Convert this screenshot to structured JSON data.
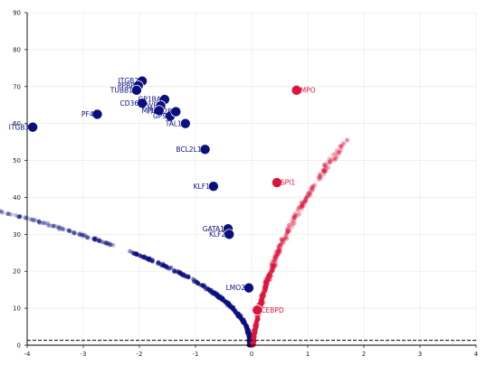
{
  "chart_data": {
    "type": "scatter",
    "title": "",
    "xlabel": "",
    "ylabel": "",
    "xlim": [
      -4,
      4
    ],
    "ylim": [
      0,
      90
    ],
    "xticks": [
      "-4",
      "-3",
      "-2",
      "-1",
      "0",
      "1",
      "2",
      "3",
      "4"
    ],
    "yticks": [
      "0",
      "10",
      "20",
      "30",
      "40",
      "50",
      "60",
      "70",
      "80",
      "90"
    ],
    "grid": true,
    "threshold_line": {
      "y": 1.3,
      "style": "dashed",
      "color": "#000000"
    },
    "colors": {
      "down": "#0b0f7d",
      "up": "#dc143c",
      "text_down": "#0b0f7d",
      "text_up": "#dc143c"
    },
    "highlighted_genes": [
      {
        "label": "ITGB3",
        "x": -3.9,
        "y": 59.0,
        "group": "down"
      },
      {
        "label": "PF4",
        "x": -2.75,
        "y": 62.5,
        "group": "down"
      },
      {
        "label": "ITGB2",
        "x": -1.95,
        "y": 71.5,
        "group": "down"
      },
      {
        "label": "PPBP",
        "x": -2.02,
        "y": 70.2,
        "group": "down"
      },
      {
        "label": "TUBB1",
        "x": -2.05,
        "y": 69.0,
        "group": "down"
      },
      {
        "label": "CD36",
        "x": -1.95,
        "y": 65.5,
        "group": "down"
      },
      {
        "label": "GP1BA",
        "x": -1.55,
        "y": 66.5,
        "group": "down"
      },
      {
        "label": "VWF",
        "x": -1.62,
        "y": 64.8,
        "group": "down"
      },
      {
        "label": "MPL",
        "x": -1.65,
        "y": 63.5,
        "group": "down"
      },
      {
        "label": "GP9",
        "x": -1.45,
        "y": 62.0,
        "group": "down"
      },
      {
        "label": "ITGA2B",
        "x": -1.35,
        "y": 63.2,
        "group": "down"
      },
      {
        "label": "TAL1",
        "x": -1.18,
        "y": 60.0,
        "group": "down"
      },
      {
        "label": "BCL2L1",
        "x": -0.83,
        "y": 53.0,
        "group": "down"
      },
      {
        "label": "KLF1",
        "x": -0.68,
        "y": 43.0,
        "group": "down"
      },
      {
        "label": "GATA1",
        "x": -0.42,
        "y": 31.5,
        "group": "down"
      },
      {
        "label": "KLF2",
        "x": -0.4,
        "y": 30.0,
        "group": "down"
      },
      {
        "label": "LMO2",
        "x": -0.05,
        "y": 15.5,
        "group": "down"
      },
      {
        "label": "CEBPD",
        "x": 0.1,
        "y": 9.5,
        "group": "up"
      },
      {
        "label": "SPI1",
        "x": 0.45,
        "y": 44.0,
        "group": "up"
      },
      {
        "label": "MPO",
        "x": 0.8,
        "y": 69.0,
        "group": "up"
      }
    ]
  }
}
